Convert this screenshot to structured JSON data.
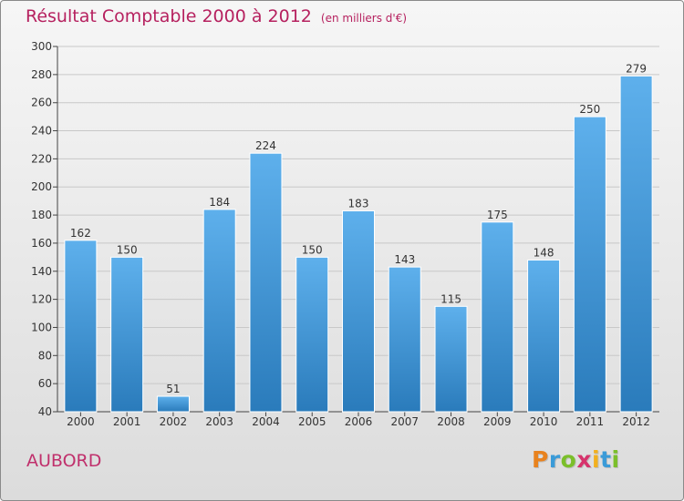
{
  "title": "Résultat Comptable 2000 à 2012",
  "subtitle": "(en milliers d'€)",
  "place": "AUBORD",
  "logo": {
    "text": "Proxiti",
    "letters": [
      {
        "ch": "P",
        "color": "#e8821e"
      },
      {
        "ch": "r",
        "color": "#3a9bd8"
      },
      {
        "ch": "o",
        "color": "#7bbf2a"
      },
      {
        "ch": "x",
        "color": "#d6336c"
      },
      {
        "ch": "i",
        "color": "#f2b01e"
      },
      {
        "ch": "t",
        "color": "#3a9bd8"
      },
      {
        "ch": "i",
        "color": "#7bbf2a"
      }
    ]
  },
  "colors": {
    "title": "#b6215f",
    "place": "#c0306c",
    "bar_top": "#5eb0ec",
    "bar_bottom": "#2a7bbb",
    "grid": "#c8c8c8"
  },
  "chart_data": {
    "type": "bar",
    "title": "Résultat Comptable 2000 à 2012",
    "subtitle": "(en milliers d'€)",
    "categories": [
      "2000",
      "2001",
      "2002",
      "2003",
      "2004",
      "2005",
      "2006",
      "2007",
      "2008",
      "2009",
      "2010",
      "2011",
      "2012"
    ],
    "values": [
      162,
      150,
      51,
      184,
      224,
      150,
      183,
      143,
      115,
      175,
      148,
      250,
      279
    ],
    "ylim": [
      40,
      300
    ],
    "yticks": [
      40,
      60,
      80,
      100,
      120,
      140,
      160,
      180,
      200,
      220,
      240,
      260,
      280,
      300
    ],
    "grid": true,
    "xlabel": "",
    "ylabel": ""
  }
}
